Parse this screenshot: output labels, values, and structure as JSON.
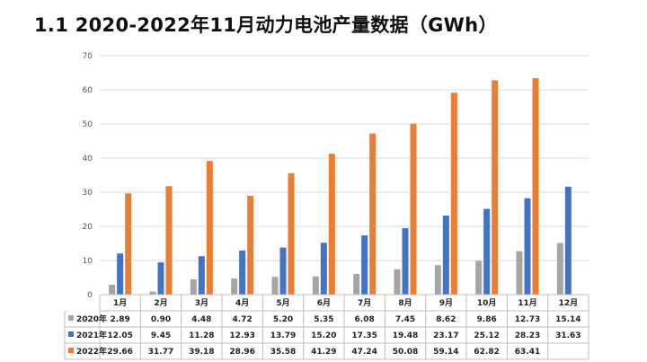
{
  "title": "1.1 2020-2022年11月动力电池产量数据（GWh）",
  "colors": {
    "2020": "#a5a5a5",
    "2021": "#4472c4",
    "2022": "#ed7d31",
    "grid": "#d9d9d9"
  },
  "chart_data": {
    "type": "bar",
    "title": "1.1 2020-2022年11月动力电池产量数据（GWh）",
    "categories": [
      "1月",
      "2月",
      "3月",
      "4月",
      "5月",
      "6月",
      "7月",
      "8月",
      "9月",
      "10月",
      "11月",
      "12月"
    ],
    "series": [
      {
        "name": "2020年",
        "values": [
          2.89,
          0.9,
          4.48,
          4.72,
          5.2,
          5.35,
          6.08,
          7.45,
          8.62,
          9.86,
          12.73,
          15.14
        ],
        "labels": [
          "2.89",
          "0.90",
          "4.48",
          "4.72",
          "5.20",
          "5.35",
          "6.08",
          "7.45",
          "8.62",
          "9.86",
          "12.73",
          "15.14"
        ]
      },
      {
        "name": "2021年",
        "values": [
          12.05,
          9.45,
          11.28,
          12.93,
          13.79,
          15.2,
          17.35,
          19.48,
          23.17,
          25.12,
          28.23,
          31.63
        ],
        "labels": [
          "12.05",
          "9.45",
          "11.28",
          "12.93",
          "13.79",
          "15.20",
          "17.35",
          "19.48",
          "23.17",
          "25.12",
          "28.23",
          "31.63"
        ]
      },
      {
        "name": "2022年",
        "values": [
          29.66,
          31.77,
          39.18,
          28.96,
          35.58,
          41.29,
          47.24,
          50.08,
          59.14,
          62.82,
          63.41,
          null
        ],
        "labels": [
          "29.66",
          "31.77",
          "39.18",
          "28.96",
          "35.58",
          "41.29",
          "47.24",
          "50.08",
          "59.14",
          "62.82",
          "63.41",
          ""
        ]
      }
    ],
    "ylim": [
      0,
      70
    ],
    "yticks": [
      "0",
      "10",
      "20",
      "30",
      "40",
      "50",
      "60",
      "70"
    ],
    "grid": true,
    "legend": "data-table"
  }
}
